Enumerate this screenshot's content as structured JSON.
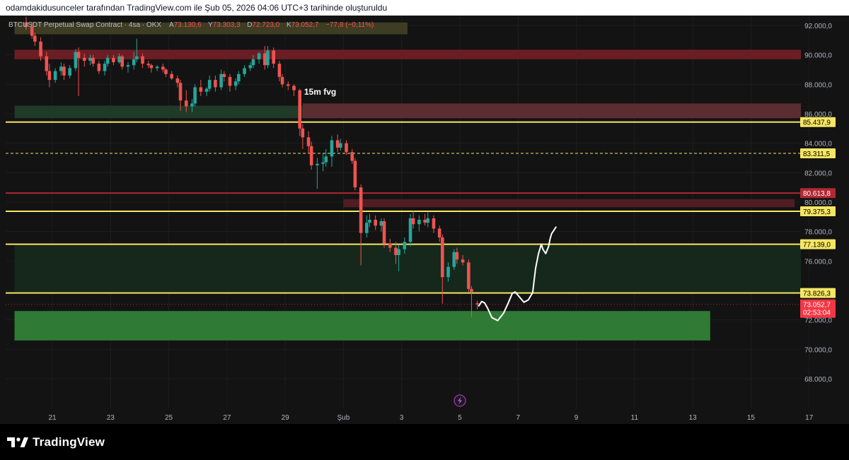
{
  "header": {
    "caption": "odamdakidusunceler tarafından TradingView.com ile Şub 05, 2026 04:06 UTC+3 tarihinde oluşturuldu"
  },
  "legend": {
    "symbol": "BTCUSDT Perpetual Swap Contract · 4sa · OKX",
    "o_label": "A",
    "o_value": "73.130,6",
    "h_label": "Y",
    "h_value": "73.303,3",
    "l_label": "D",
    "l_value": "72.723,0",
    "c_label": "K",
    "c_value": "73.052,7",
    "change": "−77,8 (−0,11%)"
  },
  "footer": {
    "brand": "TradingView"
  },
  "colors": {
    "up": "#26a69a",
    "down": "#ef5350",
    "level_line": "#f5e663",
    "red_line": "#b22833"
  },
  "chart_data": {
    "type": "candlestick",
    "title": "BTCUSDT Perpetual Swap Contract · 4sa · OKX",
    "ylim": [
      66500,
      93000
    ],
    "y_ticks": [
      {
        "value": 92000,
        "label": "92.000,0"
      },
      {
        "value": 90000,
        "label": "90.000,0"
      },
      {
        "value": 88000,
        "label": "88.000,0"
      },
      {
        "value": 86000,
        "label": "86.000,0"
      },
      {
        "value": 84000,
        "label": "84.000,0"
      },
      {
        "value": 82000,
        "label": "82.000,0"
      },
      {
        "value": 80000,
        "label": "80.000,0"
      },
      {
        "value": 78000,
        "label": "78.000,0"
      },
      {
        "value": 76000,
        "label": "76.000,0"
      },
      {
        "value": 74000,
        "label": "74.000,0"
      },
      {
        "value": 72000,
        "label": "72.000,0"
      },
      {
        "value": 70000,
        "label": "70.000,0"
      },
      {
        "value": 68000,
        "label": "68.000,0"
      }
    ],
    "x_ticks": [
      {
        "day": 21,
        "label": "21"
      },
      {
        "day": 23,
        "label": "23"
      },
      {
        "day": 25,
        "label": "25"
      },
      {
        "day": 27,
        "label": "27"
      },
      {
        "day": 29,
        "label": "29"
      },
      {
        "day": 31,
        "label": "Şub"
      },
      {
        "day": 33,
        "label": "3"
      },
      {
        "day": 35,
        "label": "5"
      },
      {
        "day": 37,
        "label": "7"
      },
      {
        "day": 39,
        "label": "9"
      },
      {
        "day": 41,
        "label": "11"
      },
      {
        "day": 43,
        "label": "13"
      },
      {
        "day": 45,
        "label": "15"
      },
      {
        "day": 47,
        "label": "17"
      }
    ],
    "x_axis_note": "day numbers continue past January 31 (32 = Şub 2)",
    "zones": [
      {
        "name": "red-zone-top",
        "x_start": 19.7,
        "x_end": 48.7,
        "y_low": 89.7,
        "y_high": 90.35,
        "color": "#6a1e24"
      },
      {
        "name": "yellow-zone-legend",
        "x_start": 19.7,
        "x_end": 33.2,
        "y_low": 91.4,
        "y_high": 92.2,
        "color": "#3e3c22"
      },
      {
        "name": "green-zone-left",
        "x_start": 19.7,
        "x_end": 29.6,
        "y_low": 85.7,
        "y_high": 86.55,
        "color": "#1f3a26"
      },
      {
        "name": "fvg-zone",
        "x_start": 29.6,
        "x_end": 48.7,
        "y_low": 85.7,
        "y_high": 86.7,
        "color": "#5a2e30"
      },
      {
        "name": "red-zone-mid",
        "x_start": 31.0,
        "x_end": 46.5,
        "y_low": 79.65,
        "y_high": 80.2,
        "color": "#4f1d22"
      },
      {
        "name": "green-zone-large",
        "x_start": 19.7,
        "x_end": 48.7,
        "y_low": 73.826,
        "y_high": 77.139,
        "color": "#16281c"
      },
      {
        "name": "green-zone-bottom",
        "x_start": 19.7,
        "x_end": 43.6,
        "y_low": 70.6,
        "y_high": 72.6,
        "color": "#2f7a35"
      }
    ],
    "levels": [
      {
        "value": 85437.9,
        "label": "85.437,9",
        "style": "solid",
        "color": "#f5e663"
      },
      {
        "value": 83311.5,
        "label": "83.311,5",
        "style": "dashed",
        "color": "#f5e663"
      },
      {
        "value": 80613.8,
        "label": "80.613,8",
        "style": "solid",
        "color": "#b22833"
      },
      {
        "value": 79375.3,
        "label": "79.375,3",
        "style": "solid",
        "color": "#f5e663"
      },
      {
        "value": 77139.0,
        "label": "77.139,0",
        "style": "solid",
        "color": "#f5e663"
      },
      {
        "value": 73826.3,
        "label": "73.826,3",
        "style": "solid",
        "color": "#f5e663"
      }
    ],
    "last_price": {
      "value": 73052.7,
      "label": "73.052,7",
      "countdown": "02:53:04",
      "color": "#f23645"
    },
    "annotations": [
      {
        "text": "15m fvg",
        "x": 29.65,
        "y": 87300
      }
    ],
    "candles": [
      [
        20.1,
        92.2,
        92.6,
        91.7,
        91.9
      ],
      [
        20.3,
        91.9,
        92.2,
        91.1,
        91.3
      ],
      [
        20.4,
        91.3,
        91.5,
        90.6,
        90.9
      ],
      [
        20.6,
        90.9,
        91.2,
        89.6,
        89.9
      ],
      [
        20.8,
        89.9,
        90.2,
        88.6,
        88.9
      ],
      [
        20.9,
        88.9,
        89.4,
        87.8,
        88.3
      ],
      [
        21.1,
        88.3,
        89.1,
        88.1,
        88.9
      ],
      [
        21.3,
        88.9,
        89.5,
        88.6,
        89.2
      ],
      [
        21.4,
        89.2,
        89.4,
        88.3,
        88.6
      ],
      [
        21.6,
        88.6,
        89.3,
        88.4,
        89.1
      ],
      [
        21.8,
        89.1,
        90.4,
        88.9,
        90.2
      ],
      [
        21.9,
        90.2,
        90.5,
        87.2,
        89.8
      ],
      [
        22.1,
        89.8,
        90.1,
        89.2,
        89.6
      ],
      [
        22.3,
        89.6,
        90.0,
        89.3,
        89.8
      ],
      [
        22.4,
        89.8,
        90.0,
        89.2,
        89.4
      ],
      [
        22.6,
        89.4,
        89.6,
        88.7,
        88.9
      ],
      [
        22.8,
        88.9,
        89.6,
        88.6,
        89.4
      ],
      [
        22.9,
        89.4,
        90.0,
        89.2,
        89.8
      ],
      [
        23.1,
        89.8,
        90.0,
        89.3,
        89.5
      ],
      [
        23.3,
        89.5,
        90.1,
        89.4,
        89.9
      ],
      [
        23.4,
        89.9,
        90.0,
        89.0,
        89.2
      ],
      [
        23.6,
        89.2,
        89.5,
        88.8,
        89.3
      ],
      [
        23.8,
        89.3,
        90.2,
        89.0,
        89.7
      ],
      [
        23.9,
        89.7,
        91.1,
        89.5,
        89.9
      ],
      [
        24.1,
        89.9,
        90.1,
        89.1,
        89.4
      ],
      [
        24.3,
        89.4,
        89.6,
        89.1,
        89.3
      ],
      [
        24.4,
        89.3,
        89.4,
        88.8,
        89.1
      ],
      [
        24.6,
        89.1,
        89.3,
        88.9,
        89.2
      ],
      [
        24.8,
        89.2,
        89.4,
        88.8,
        89.0
      ],
      [
        24.9,
        89.0,
        89.1,
        88.5,
        88.7
      ],
      [
        25.1,
        88.7,
        88.9,
        88.3,
        88.4
      ],
      [
        25.3,
        88.4,
        88.6,
        87.8,
        88.1
      ],
      [
        25.4,
        88.1,
        88.3,
        86.2,
        86.9
      ],
      [
        25.6,
        86.9,
        87.6,
        86.1,
        86.5
      ],
      [
        25.8,
        86.5,
        87.0,
        86.1,
        86.7
      ],
      [
        25.9,
        86.7,
        88.0,
        86.5,
        87.8
      ],
      [
        26.1,
        87.8,
        88.3,
        87.2,
        87.5
      ],
      [
        26.3,
        87.5,
        87.8,
        87.2,
        87.7
      ],
      [
        26.4,
        87.7,
        88.6,
        87.5,
        88.3
      ],
      [
        26.6,
        88.3,
        88.6,
        87.5,
        87.8
      ],
      [
        26.8,
        87.8,
        89.0,
        87.6,
        88.7
      ],
      [
        26.9,
        88.7,
        88.9,
        88.2,
        88.5
      ],
      [
        27.1,
        88.5,
        88.7,
        87.5,
        87.9
      ],
      [
        27.3,
        87.9,
        88.4,
        87.6,
        88.2
      ],
      [
        27.4,
        88.2,
        88.9,
        88.0,
        88.7
      ],
      [
        27.6,
        88.7,
        89.3,
        88.5,
        89.1
      ],
      [
        27.8,
        89.1,
        89.5,
        88.9,
        89.3
      ],
      [
        27.9,
        89.3,
        90.0,
        89.1,
        89.7
      ],
      [
        28.1,
        89.7,
        90.2,
        89.4,
        90.1
      ],
      [
        28.3,
        90.1,
        90.6,
        89.0,
        89.3
      ],
      [
        28.4,
        89.3,
        90.6,
        89.1,
        90.3
      ],
      [
        28.6,
        90.3,
        90.5,
        89.1,
        89.4
      ],
      [
        28.8,
        89.4,
        89.6,
        88.2,
        88.5
      ],
      [
        28.9,
        88.5,
        88.7,
        87.8,
        88.0
      ],
      [
        29.1,
        88.0,
        88.2,
        87.6,
        87.9
      ],
      [
        29.3,
        87.9,
        88.0,
        87.2,
        87.6
      ],
      [
        29.5,
        87.6,
        87.7,
        84.5,
        85.0
      ],
      [
        29.6,
        85.0,
        85.3,
        83.6,
        84.4
      ],
      [
        29.8,
        84.4,
        84.8,
        83.3,
        83.8
      ],
      [
        29.9,
        83.8,
        84.1,
        82.2,
        82.5
      ],
      [
        30.1,
        82.5,
        83.0,
        80.9,
        82.6
      ],
      [
        30.3,
        82.6,
        83.3,
        82.1,
        82.7
      ],
      [
        30.4,
        82.7,
        83.6,
        82.4,
        83.1
      ],
      [
        30.6,
        83.1,
        84.5,
        82.4,
        84.2
      ],
      [
        30.8,
        84.2,
        84.6,
        83.4,
        83.7
      ],
      [
        30.9,
        83.7,
        84.3,
        83.5,
        84.0
      ],
      [
        31.1,
        84.0,
        84.2,
        83.2,
        83.4
      ],
      [
        31.3,
        83.4,
        83.6,
        82.6,
        82.8
      ],
      [
        31.4,
        82.8,
        83.0,
        80.8,
        81.0
      ],
      [
        31.6,
        81.0,
        81.2,
        75.7,
        77.9
      ],
      [
        31.8,
        77.9,
        79.1,
        77.6,
        78.6
      ],
      [
        31.9,
        78.6,
        79.2,
        78.3,
        78.8
      ],
      [
        32.1,
        78.8,
        79.1,
        78.1,
        78.4
      ],
      [
        32.3,
        78.4,
        78.9,
        78.0,
        78.7
      ],
      [
        32.4,
        78.7,
        78.9,
        76.9,
        77.2
      ],
      [
        32.6,
        77.2,
        77.5,
        76.6,
        76.9
      ],
      [
        32.8,
        76.9,
        77.3,
        75.8,
        76.4
      ],
      [
        32.9,
        76.4,
        77.1,
        75.3,
        76.8
      ],
      [
        33.1,
        76.8,
        77.6,
        76.5,
        77.3
      ],
      [
        33.3,
        77.3,
        79.2,
        77.0,
        78.9
      ],
      [
        33.4,
        78.9,
        79.4,
        78.2,
        78.5
      ],
      [
        33.6,
        78.5,
        79.1,
        78.0,
        78.8
      ],
      [
        33.8,
        78.8,
        79.2,
        78.4,
        78.6
      ],
      [
        33.9,
        78.6,
        79.3,
        78.3,
        78.9
      ],
      [
        34.1,
        78.9,
        79.1,
        77.9,
        78.2
      ],
      [
        34.3,
        78.2,
        78.4,
        77.3,
        77.6
      ],
      [
        34.4,
        77.6,
        77.8,
        73.1,
        74.9
      ],
      [
        34.6,
        74.9,
        75.9,
        74.6,
        75.6
      ],
      [
        34.8,
        75.6,
        76.8,
        75.4,
        76.6
      ],
      [
        34.9,
        76.6,
        76.9,
        75.8,
        76.1
      ],
      [
        35.1,
        76.1,
        76.4,
        75.7,
        75.9
      ],
      [
        35.3,
        75.9,
        76.1,
        73.9,
        74.1
      ],
      [
        35.4,
        74.1,
        74.3,
        72.2,
        73.9
      ],
      [
        35.6,
        73.13,
        73.3,
        72.72,
        73.05
      ]
    ],
    "drawing_path": [
      [
        35.65,
        72.95
      ],
      [
        35.75,
        73.25
      ],
      [
        35.85,
        73.15
      ],
      [
        35.95,
        72.8
      ],
      [
        36.1,
        72.15
      ],
      [
        36.3,
        71.95
      ],
      [
        36.5,
        72.45
      ],
      [
        36.65,
        73.1
      ],
      [
        36.8,
        73.8
      ],
      [
        36.9,
        73.9
      ],
      [
        37.05,
        73.55
      ],
      [
        37.2,
        73.2
      ],
      [
        37.35,
        73.35
      ],
      [
        37.5,
        73.85
      ],
      [
        37.6,
        75.5
      ],
      [
        37.7,
        76.5
      ],
      [
        37.8,
        77.15
      ],
      [
        37.85,
        76.8
      ],
      [
        37.95,
        76.5
      ],
      [
        38.05,
        77.0
      ],
      [
        38.1,
        77.5
      ],
      [
        38.15,
        77.85
      ],
      [
        38.3,
        78.3
      ]
    ]
  }
}
